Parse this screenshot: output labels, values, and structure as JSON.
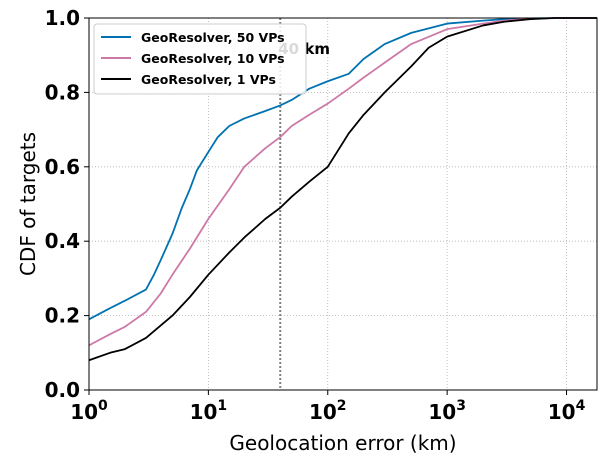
{
  "chart_data": {
    "type": "line",
    "xscale": "log",
    "xlim": [
      1,
      18000
    ],
    "ylim": [
      0,
      1
    ],
    "xlabel": "Geolocation error (km)",
    "ylabel": "CDF of targets",
    "x_ticks": [
      {
        "value": 1,
        "base": "10",
        "exp": "0"
      },
      {
        "value": 10,
        "base": "10",
        "exp": "1"
      },
      {
        "value": 100,
        "base": "10",
        "exp": "2"
      },
      {
        "value": 1000,
        "base": "10",
        "exp": "3"
      },
      {
        "value": 10000,
        "base": "10",
        "exp": "4"
      }
    ],
    "y_ticks": [
      "0.0",
      "0.2",
      "0.4",
      "0.6",
      "0.8",
      "1.0"
    ],
    "grid": true,
    "legend_position": "top-left",
    "vline": {
      "x": 40,
      "label": "40 km",
      "color": "#808080"
    },
    "series": [
      {
        "name": "GeoResolver, 50 VPs",
        "color": "#0072b2",
        "x": [
          1,
          1.5,
          2,
          3,
          3.5,
          4,
          5,
          6,
          7,
          8,
          10,
          12,
          15,
          20,
          30,
          40,
          50,
          70,
          100,
          150,
          200,
          300,
          500,
          1000,
          2000,
          3000,
          5000,
          8000
        ],
        "y": [
          0.19,
          0.22,
          0.24,
          0.27,
          0.31,
          0.35,
          0.42,
          0.49,
          0.54,
          0.59,
          0.64,
          0.68,
          0.71,
          0.73,
          0.75,
          0.765,
          0.78,
          0.81,
          0.83,
          0.85,
          0.89,
          0.93,
          0.96,
          0.985,
          0.993,
          0.997,
          0.999,
          1.0
        ]
      },
      {
        "name": "GeoResolver, 10 VPs",
        "color": "#cc79a7",
        "x": [
          1,
          1.5,
          2,
          3,
          4,
          5,
          7,
          10,
          15,
          20,
          30,
          40,
          50,
          70,
          100,
          150,
          200,
          300,
          500,
          1000,
          2000,
          3000,
          5000,
          8000
        ],
        "y": [
          0.12,
          0.15,
          0.17,
          0.21,
          0.26,
          0.31,
          0.38,
          0.46,
          0.54,
          0.6,
          0.65,
          0.68,
          0.71,
          0.74,
          0.77,
          0.81,
          0.84,
          0.88,
          0.93,
          0.97,
          0.985,
          0.993,
          0.998,
          1.0
        ]
      },
      {
        "name": "GeoResolver, 1 VPs",
        "color": "#000000",
        "x": [
          1,
          1.5,
          2,
          3,
          5,
          7,
          10,
          15,
          20,
          30,
          40,
          50,
          70,
          100,
          150,
          200,
          300,
          500,
          700,
          1000,
          2000,
          3000,
          5000,
          8000
        ],
        "y": [
          0.08,
          0.1,
          0.11,
          0.14,
          0.2,
          0.25,
          0.31,
          0.37,
          0.41,
          0.46,
          0.49,
          0.52,
          0.56,
          0.6,
          0.69,
          0.74,
          0.8,
          0.87,
          0.92,
          0.95,
          0.98,
          0.99,
          0.997,
          1.0
        ]
      }
    ]
  }
}
